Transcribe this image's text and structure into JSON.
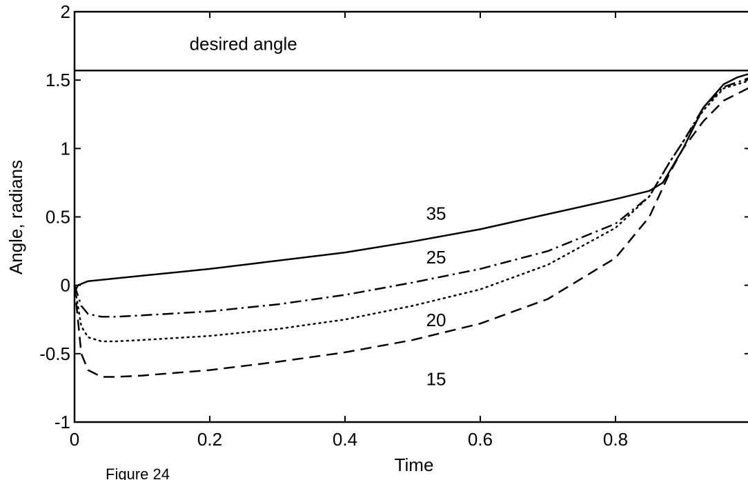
{
  "chart_data": {
    "type": "line",
    "title": "",
    "xlabel": "Time",
    "ylabel": "Angle, radians",
    "xlim": [
      0,
      1
    ],
    "ylim": [
      -1,
      2
    ],
    "x_ticks": [
      0,
      0.2,
      0.4,
      0.6,
      0.8
    ],
    "x_tick_labels": [
      "0",
      "0.2",
      "0.4",
      "0.6",
      "0.8"
    ],
    "y_ticks": [
      -1,
      -0.5,
      0,
      0.5,
      1,
      1.5,
      2
    ],
    "y_tick_labels": [
      "-1",
      "-0.5",
      "0",
      "0.5",
      "1",
      "1.5",
      "2"
    ],
    "grid": false,
    "legend": "none",
    "series": [
      {
        "name": "desired angle",
        "style": "solid",
        "x": [
          0,
          1
        ],
        "y": [
          1.57,
          1.57
        ]
      },
      {
        "name": "35",
        "style": "solid",
        "x": [
          0,
          0.005,
          0.02,
          0.1,
          0.2,
          0.3,
          0.4,
          0.5,
          0.6,
          0.7,
          0.8,
          0.85,
          0.87,
          0.9,
          0.93,
          0.96,
          0.98,
          1.0
        ],
        "y": [
          -0.05,
          0.0,
          0.03,
          0.07,
          0.12,
          0.18,
          0.24,
          0.32,
          0.41,
          0.52,
          0.63,
          0.69,
          0.75,
          1.0,
          1.3,
          1.47,
          1.52,
          1.55
        ]
      },
      {
        "name": "25",
        "style": "dashdot",
        "x": [
          0,
          0.01,
          0.02,
          0.04,
          0.06,
          0.1,
          0.2,
          0.3,
          0.4,
          0.5,
          0.6,
          0.7,
          0.8,
          0.85,
          0.88,
          0.9,
          0.93,
          0.96,
          1.0
        ],
        "y": [
          0.0,
          -0.15,
          -0.21,
          -0.23,
          -0.23,
          -0.22,
          -0.19,
          -0.14,
          -0.07,
          0.02,
          0.12,
          0.25,
          0.45,
          0.65,
          0.9,
          1.05,
          1.3,
          1.45,
          1.52
        ]
      },
      {
        "name": "20",
        "style": "dotted",
        "x": [
          0,
          0.01,
          0.02,
          0.04,
          0.06,
          0.1,
          0.2,
          0.3,
          0.4,
          0.5,
          0.6,
          0.7,
          0.8,
          0.85,
          0.88,
          0.9,
          0.93,
          0.96,
          1.0
        ],
        "y": [
          0.0,
          -0.3,
          -0.38,
          -0.41,
          -0.41,
          -0.4,
          -0.37,
          -0.32,
          -0.25,
          -0.15,
          -0.03,
          0.15,
          0.42,
          0.65,
          0.9,
          1.05,
          1.28,
          1.44,
          1.5
        ]
      },
      {
        "name": "15",
        "style": "dashed",
        "x": [
          0,
          0.01,
          0.02,
          0.04,
          0.06,
          0.1,
          0.2,
          0.3,
          0.4,
          0.5,
          0.6,
          0.7,
          0.8,
          0.85,
          0.88,
          0.9,
          0.93,
          0.96,
          1.0
        ],
        "y": [
          0.0,
          -0.5,
          -0.62,
          -0.67,
          -0.67,
          -0.66,
          -0.62,
          -0.56,
          -0.49,
          -0.4,
          -0.28,
          -0.1,
          0.2,
          0.5,
          0.82,
          1.0,
          1.2,
          1.35,
          1.45
        ]
      }
    ],
    "annotations": [
      {
        "text": "desired angle",
        "x": 0.17,
        "y": 1.72
      },
      {
        "text": "35",
        "x": 0.52,
        "y": 0.48
      },
      {
        "text": "25",
        "x": 0.52,
        "y": 0.16
      },
      {
        "text": "20",
        "x": 0.52,
        "y": -0.3
      },
      {
        "text": "15",
        "x": 0.52,
        "y": -0.73
      }
    ]
  },
  "caption": "Figure 24"
}
